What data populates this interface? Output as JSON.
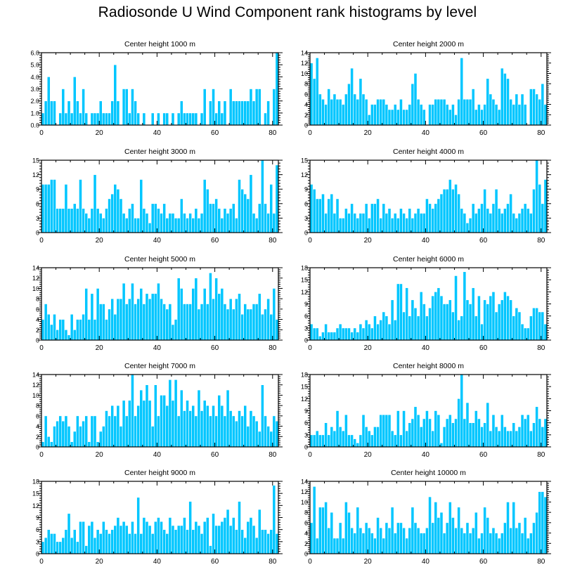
{
  "title": "Radiosonde U Wind Component rank histograms by level",
  "colors": {
    "bar": "#00c6ff",
    "bar_edge": "#ffffff",
    "axis": "#000000"
  },
  "chart_data": [
    {
      "type": "bar",
      "title": "Center height 1000 m",
      "xlim": [
        0,
        82
      ],
      "ylim": [
        0,
        6
      ],
      "xticks": [
        0,
        20,
        40,
        60,
        80
      ],
      "xticklabels": [
        "0",
        "20",
        "40",
        "60",
        "80"
      ],
      "yticks": [
        0,
        1,
        2,
        3,
        4,
        5,
        6
      ],
      "yticklabels": [
        "0.0",
        "1.0",
        "2.0",
        "3.0",
        "4.0",
        "5.0",
        "6.0"
      ],
      "x_start": 0,
      "values": [
        1,
        2,
        4,
        2,
        2,
        0,
        1,
        3,
        1,
        2,
        1,
        4,
        2,
        1,
        3,
        1,
        0,
        1,
        1,
        1,
        2,
        1,
        1,
        1,
        2,
        5,
        2,
        0,
        3,
        3,
        1,
        3,
        2,
        1,
        0,
        1,
        0,
        0,
        1,
        0,
        1,
        0,
        1,
        1,
        0,
        1,
        0,
        1,
        2,
        1,
        1,
        1,
        1,
        1,
        0,
        1,
        3,
        0,
        2,
        3,
        1,
        2,
        1,
        2,
        0,
        3,
        2,
        2,
        2,
        2,
        2,
        2,
        3,
        2,
        3,
        3,
        0,
        1,
        2,
        0,
        3,
        6
      ]
    },
    {
      "type": "bar",
      "title": "Center height 2000 m",
      "xlim": [
        0,
        82
      ],
      "ylim": [
        0,
        14
      ],
      "xticks": [
        0,
        20,
        40,
        60,
        80
      ],
      "xticklabels": [
        "0",
        "20",
        "40",
        "60",
        "80"
      ],
      "yticks": [
        0,
        2,
        4,
        6,
        8,
        10,
        12,
        14
      ],
      "yticklabels": [
        "0",
        "2",
        "4",
        "6",
        "8",
        "10",
        "12",
        "14"
      ],
      "x_start": 0,
      "values": [
        12,
        9,
        13,
        6,
        5,
        4,
        7,
        5,
        6,
        5,
        5,
        4,
        6,
        8,
        11,
        6,
        5,
        9,
        6,
        5,
        2,
        4,
        4,
        5,
        5,
        5,
        4,
        3,
        3,
        4,
        3,
        5,
        3,
        3,
        4,
        8,
        10,
        5,
        4,
        3,
        0,
        4,
        4,
        5,
        5,
        5,
        5,
        4,
        3,
        4,
        2,
        5,
        13,
        5,
        5,
        5,
        7,
        3,
        4,
        3,
        4,
        9,
        6,
        5,
        4,
        3,
        11,
        10,
        9,
        5,
        4,
        6,
        4,
        6,
        4,
        0,
        7,
        7,
        6,
        5,
        8,
        4
      ]
    },
    {
      "type": "bar",
      "title": "Center height 3000 m",
      "xlim": [
        0,
        82
      ],
      "ylim": [
        0,
        15
      ],
      "xticks": [
        0,
        20,
        40,
        60,
        80
      ],
      "xticklabels": [
        "0",
        "20",
        "40",
        "60",
        "80"
      ],
      "yticks": [
        0,
        3,
        6,
        9,
        12,
        15
      ],
      "yticklabels": [
        "0",
        "3",
        "6",
        "9",
        "12",
        "15"
      ],
      "x_start": 0,
      "values": [
        10,
        10,
        10,
        11,
        11,
        5,
        5,
        5,
        10,
        5,
        5,
        6,
        5,
        11,
        5,
        4,
        3,
        5,
        12,
        5,
        4,
        3,
        5,
        7,
        8,
        10,
        9,
        7,
        4,
        3,
        5,
        6,
        3,
        3,
        11,
        5,
        4,
        2,
        6,
        6,
        5,
        4,
        6,
        3,
        4,
        4,
        3,
        3,
        7,
        4,
        3,
        4,
        3,
        5,
        3,
        4,
        11,
        9,
        6,
        6,
        7,
        5,
        3,
        5,
        4,
        5,
        6,
        3,
        11,
        9,
        8,
        7,
        12,
        4,
        3,
        6,
        15,
        6,
        4,
        10,
        4,
        14
      ]
    },
    {
      "type": "bar",
      "title": "Center height 4000 m",
      "xlim": [
        0,
        82
      ],
      "ylim": [
        0,
        15
      ],
      "xticks": [
        0,
        20,
        40,
        60,
        80
      ],
      "xticklabels": [
        "0",
        "20",
        "40",
        "60",
        "80"
      ],
      "yticks": [
        0,
        3,
        6,
        9,
        12,
        15
      ],
      "yticklabels": [
        "0",
        "3",
        "6",
        "9",
        "12",
        "15"
      ],
      "x_start": 0,
      "values": [
        10,
        9,
        7,
        7,
        8,
        4,
        7,
        8,
        4,
        7,
        3,
        3,
        5,
        4,
        6,
        4,
        3,
        4,
        4,
        6,
        3,
        6,
        6,
        7,
        3,
        6,
        4,
        5,
        3,
        4,
        3,
        5,
        4,
        3,
        5,
        3,
        4,
        5,
        4,
        4,
        7,
        6,
        5,
        6,
        7,
        8,
        9,
        9,
        11,
        9,
        10,
        8,
        5,
        4,
        2,
        3,
        6,
        4,
        5,
        6,
        9,
        5,
        4,
        6,
        9,
        5,
        4,
        5,
        6,
        8,
        4,
        3,
        4,
        5,
        6,
        5,
        4,
        9,
        15,
        10,
        6,
        11
      ]
    },
    {
      "type": "bar",
      "title": "Center height 5000 m",
      "xlim": [
        0,
        82
      ],
      "ylim": [
        0,
        14
      ],
      "xticks": [
        0,
        20,
        40,
        60,
        80
      ],
      "xticklabels": [
        "0",
        "20",
        "40",
        "60",
        "80"
      ],
      "yticks": [
        0,
        2,
        4,
        6,
        8,
        10,
        12,
        14
      ],
      "yticklabels": [
        "0",
        "2",
        "4",
        "6",
        "8",
        "10",
        "12",
        "14"
      ],
      "x_start": 0,
      "values": [
        4,
        7,
        5,
        3,
        5,
        2,
        4,
        4,
        2,
        1,
        5,
        2,
        4,
        4,
        5,
        10,
        4,
        9,
        4,
        10,
        7,
        7,
        4,
        6,
        8,
        5,
        8,
        8,
        11,
        7,
        8,
        11,
        7,
        8,
        10,
        7,
        9,
        8,
        9,
        9,
        11,
        8,
        7,
        6,
        7,
        3,
        4,
        12,
        10,
        7,
        7,
        7,
        10,
        12,
        6,
        7,
        10,
        7,
        13,
        8,
        12,
        9,
        10,
        7,
        6,
        8,
        6,
        8,
        9,
        5,
        7,
        6,
        6,
        7,
        7,
        9,
        5,
        6,
        8,
        5,
        10,
        4
      ]
    },
    {
      "type": "bar",
      "title": "Center height 6000 m",
      "xlim": [
        0,
        82
      ],
      "ylim": [
        0,
        18
      ],
      "xticks": [
        0,
        20,
        40,
        60,
        80
      ],
      "xticklabels": [
        "0",
        "20",
        "40",
        "60",
        "80"
      ],
      "yticks": [
        0,
        3,
        6,
        9,
        12,
        15,
        18
      ],
      "yticklabels": [
        "0",
        "3",
        "6",
        "9",
        "12",
        "15",
        "18"
      ],
      "x_start": 0,
      "values": [
        4,
        3,
        3,
        1,
        2,
        4,
        2,
        2,
        2,
        3,
        4,
        3,
        3,
        3,
        2,
        3,
        2,
        4,
        3,
        5,
        4,
        3,
        6,
        4,
        5,
        7,
        6,
        4,
        10,
        5,
        14,
        14,
        7,
        13,
        6,
        10,
        8,
        6,
        12,
        9,
        6,
        8,
        11,
        12,
        13,
        11,
        9,
        9,
        10,
        7,
        16,
        5,
        6,
        17,
        10,
        9,
        13,
        6,
        11,
        4,
        10,
        9,
        11,
        12,
        7,
        9,
        10,
        12,
        11,
        10,
        6,
        8,
        7,
        4,
        3,
        3,
        6,
        8,
        8,
        7,
        7,
        4
      ]
    },
    {
      "type": "bar",
      "title": "Center height 7000 m",
      "xlim": [
        0,
        82
      ],
      "ylim": [
        0,
        14
      ],
      "xticks": [
        0,
        20,
        40,
        60,
        80
      ],
      "xticklabels": [
        "0",
        "20",
        "40",
        "60",
        "80"
      ],
      "yticks": [
        0,
        2,
        4,
        6,
        8,
        10,
        12,
        14
      ],
      "yticklabels": [
        "0",
        "2",
        "4",
        "6",
        "8",
        "10",
        "12",
        "14"
      ],
      "x_start": 0,
      "values": [
        1,
        6,
        2,
        1,
        4,
        5,
        6,
        5,
        6,
        4,
        1,
        3,
        6,
        4,
        5,
        6,
        1,
        6,
        6,
        1,
        3,
        4,
        7,
        6,
        8,
        6,
        8,
        4,
        9,
        6,
        9,
        14,
        6,
        8,
        11,
        9,
        12,
        9,
        4,
        12,
        6,
        10,
        10,
        8,
        13,
        9,
        13,
        6,
        11,
        7,
        9,
        7,
        8,
        6,
        11,
        7,
        9,
        8,
        6,
        8,
        6,
        10,
        8,
        6,
        11,
        7,
        6,
        5,
        7,
        6,
        8,
        4,
        7,
        6,
        5,
        3,
        12,
        6,
        4,
        3,
        6,
        5
      ]
    },
    {
      "type": "bar",
      "title": "Center height 8000 m",
      "xlim": [
        0,
        82
      ],
      "ylim": [
        0,
        18
      ],
      "xticks": [
        0,
        20,
        40,
        60,
        80
      ],
      "xticklabels": [
        "0",
        "20",
        "40",
        "60",
        "80"
      ],
      "yticks": [
        0,
        3,
        6,
        9,
        12,
        15,
        18
      ],
      "yticklabels": [
        "0",
        "3",
        "6",
        "9",
        "12",
        "15",
        "18"
      ],
      "x_start": 0,
      "values": [
        3,
        3,
        4,
        3,
        3,
        6,
        3,
        5,
        4,
        9,
        5,
        4,
        8,
        3,
        3,
        2,
        1,
        3,
        8,
        5,
        4,
        3,
        5,
        5,
        8,
        8,
        8,
        8,
        4,
        3,
        9,
        3,
        9,
        4,
        6,
        7,
        10,
        8,
        5,
        7,
        9,
        7,
        4,
        9,
        8,
        1,
        5,
        7,
        8,
        6,
        7,
        12,
        18,
        7,
        11,
        6,
        6,
        9,
        7,
        5,
        6,
        11,
        4,
        8,
        5,
        4,
        8,
        5,
        4,
        4,
        6,
        4,
        5,
        8,
        7,
        8,
        4,
        6,
        10,
        7,
        5,
        7
      ]
    },
    {
      "type": "bar",
      "title": "Center height 9000 m",
      "xlim": [
        0,
        82
      ],
      "ylim": [
        0,
        18
      ],
      "xticks": [
        0,
        20,
        40,
        60,
        80
      ],
      "xticklabels": [
        "0",
        "20",
        "40",
        "60",
        "80"
      ],
      "yticks": [
        0,
        3,
        6,
        9,
        12,
        15,
        18
      ],
      "yticklabels": [
        "0",
        "3",
        "6",
        "9",
        "12",
        "15",
        "18"
      ],
      "x_start": 0,
      "values": [
        3,
        4,
        6,
        5,
        5,
        3,
        3,
        4,
        6,
        10,
        4,
        6,
        3,
        8,
        8,
        2,
        7,
        8,
        4,
        6,
        5,
        8,
        6,
        5,
        6,
        7,
        9,
        7,
        8,
        7,
        5,
        8,
        5,
        14,
        5,
        9,
        8,
        7,
        5,
        8,
        9,
        8,
        6,
        5,
        9,
        7,
        6,
        7,
        7,
        9,
        6,
        13,
        6,
        8,
        7,
        5,
        8,
        9,
        2,
        10,
        7,
        7,
        8,
        9,
        11,
        7,
        9,
        6,
        13,
        6,
        4,
        8,
        9,
        7,
        4,
        11,
        6,
        6,
        5,
        6,
        17,
        5
      ]
    },
    {
      "type": "bar",
      "title": "Center height 10000 m",
      "xlim": [
        0,
        82
      ],
      "ylim": [
        0,
        14
      ],
      "xticks": [
        0,
        20,
        40,
        60,
        80
      ],
      "xticklabels": [
        "0",
        "20",
        "40",
        "60",
        "80"
      ],
      "yticks": [
        0,
        2,
        4,
        6,
        8,
        10,
        12,
        14
      ],
      "yticklabels": [
        "0",
        "2",
        "4",
        "6",
        "8",
        "10",
        "12",
        "14"
      ],
      "x_start": 0,
      "values": [
        6,
        13,
        3,
        9,
        9,
        10,
        5,
        8,
        3,
        3,
        6,
        3,
        10,
        8,
        5,
        4,
        9,
        5,
        4,
        6,
        5,
        4,
        3,
        7,
        5,
        3,
        6,
        5,
        9,
        4,
        6,
        6,
        5,
        3,
        5,
        9,
        6,
        5,
        4,
        4,
        5,
        11,
        6,
        10,
        7,
        8,
        4,
        6,
        10,
        7,
        5,
        9,
        5,
        4,
        6,
        4,
        5,
        8,
        3,
        4,
        9,
        7,
        4,
        5,
        4,
        3,
        4,
        6,
        10,
        5,
        10,
        5,
        6,
        4,
        7,
        3,
        4,
        6,
        8,
        12,
        12,
        11
      ]
    }
  ]
}
